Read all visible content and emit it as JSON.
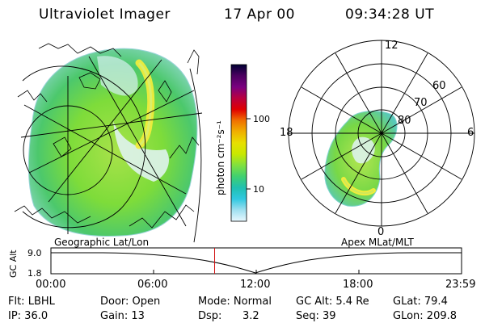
{
  "header": {
    "title": "Ultraviolet Imager",
    "date": "17 Apr 00",
    "time": "09:34:28 UT"
  },
  "colorbar": {
    "unit_label": "photon cm⁻²s⁻¹",
    "ticks": [
      "100",
      "10"
    ],
    "stops": [
      "#000033",
      "#4b0060",
      "#7a0080",
      "#b80040",
      "#e00000",
      "#f07000",
      "#f0b000",
      "#e8e000",
      "#c8e800",
      "#80e040",
      "#40d070",
      "#20c0b0",
      "#30c8e0",
      "#a0e0f0",
      "#e8f8ff"
    ]
  },
  "panels": {
    "geo_label": "Geographic Lat/Lon",
    "apex_label": "Apex MLat/MLT",
    "polar": {
      "mlt_labels": [
        "12",
        "18",
        "6",
        "0"
      ],
      "lat_labels": [
        "60",
        "70",
        "80"
      ]
    }
  },
  "timeline": {
    "ylabel": "GC Alt",
    "y_ticks": [
      "9.0",
      "1.8"
    ],
    "x_ticks": [
      "00:00",
      "06:00",
      "12:00",
      "18:00",
      "23:59"
    ],
    "marker_time": "09:34"
  },
  "status": {
    "filter": "Flt: LBHL",
    "ip": "IP: 36.0",
    "door": "Door: Open",
    "gain": "Gain: 13",
    "mode": "Mode: Normal",
    "dsp_label": "Dsp:",
    "dsp_value": "3.2",
    "gc_alt": "GC Alt: 5.4 Re",
    "seq": "Seq: 39",
    "glat": "GLat: 79.4",
    "glon": "GLon: 209.8"
  }
}
